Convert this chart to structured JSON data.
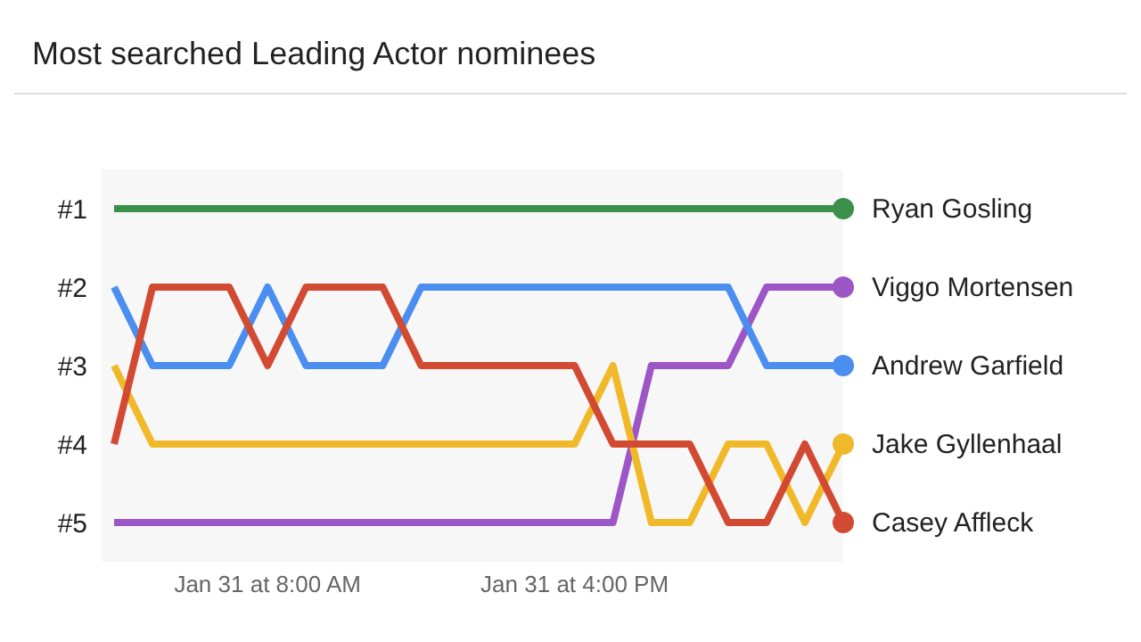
{
  "chart_data": {
    "type": "line",
    "title": "Most searched Leading Actor nominees",
    "categories": [
      null,
      null,
      null,
      null,
      "Jan 31 at 8:00 AM",
      null,
      null,
      null,
      null,
      null,
      null,
      null,
      "Jan 31 at 4:00 PM",
      null,
      null,
      null,
      null,
      null,
      null,
      null
    ],
    "ylim": [
      5.5,
      0.5
    ],
    "yticks": [
      {
        "value": 1,
        "label": "#1"
      },
      {
        "value": 2,
        "label": "#2"
      },
      {
        "value": 3,
        "label": "#3"
      },
      {
        "value": 4,
        "label": "#4"
      },
      {
        "value": 5,
        "label": "#5"
      }
    ],
    "series": [
      {
        "name": "Ryan Gosling",
        "color": "#3a8f4a",
        "values": [
          1,
          1,
          1,
          1,
          1,
          1,
          1,
          1,
          1,
          1,
          1,
          1,
          1,
          1,
          1,
          1,
          1,
          1,
          1,
          1
        ]
      },
      {
        "name": "Viggo Mortensen",
        "color": "#9c56c6",
        "values": [
          5,
          5,
          5,
          5,
          5,
          5,
          5,
          5,
          5,
          5,
          5,
          5,
          5,
          5,
          3,
          3,
          3,
          2,
          2,
          2
        ]
      },
      {
        "name": "Andrew Garfield",
        "color": "#4a8ef0",
        "values": [
          2,
          3,
          3,
          3,
          2,
          3,
          3,
          3,
          2,
          2,
          2,
          2,
          2,
          2,
          2,
          2,
          2,
          3,
          3,
          3
        ]
      },
      {
        "name": "Jake Gyllenhaal",
        "color": "#f0b929",
        "values": [
          3,
          4,
          4,
          4,
          4,
          4,
          4,
          4,
          4,
          4,
          4,
          4,
          4,
          3,
          5,
          5,
          4,
          4,
          5,
          4
        ]
      },
      {
        "name": "Casey Affleck",
        "color": "#d24a32",
        "values": [
          4,
          2,
          2,
          2,
          3,
          2,
          2,
          2,
          3,
          3,
          3,
          3,
          3,
          4,
          4,
          4,
          5,
          5,
          4,
          5
        ]
      }
    ]
  }
}
